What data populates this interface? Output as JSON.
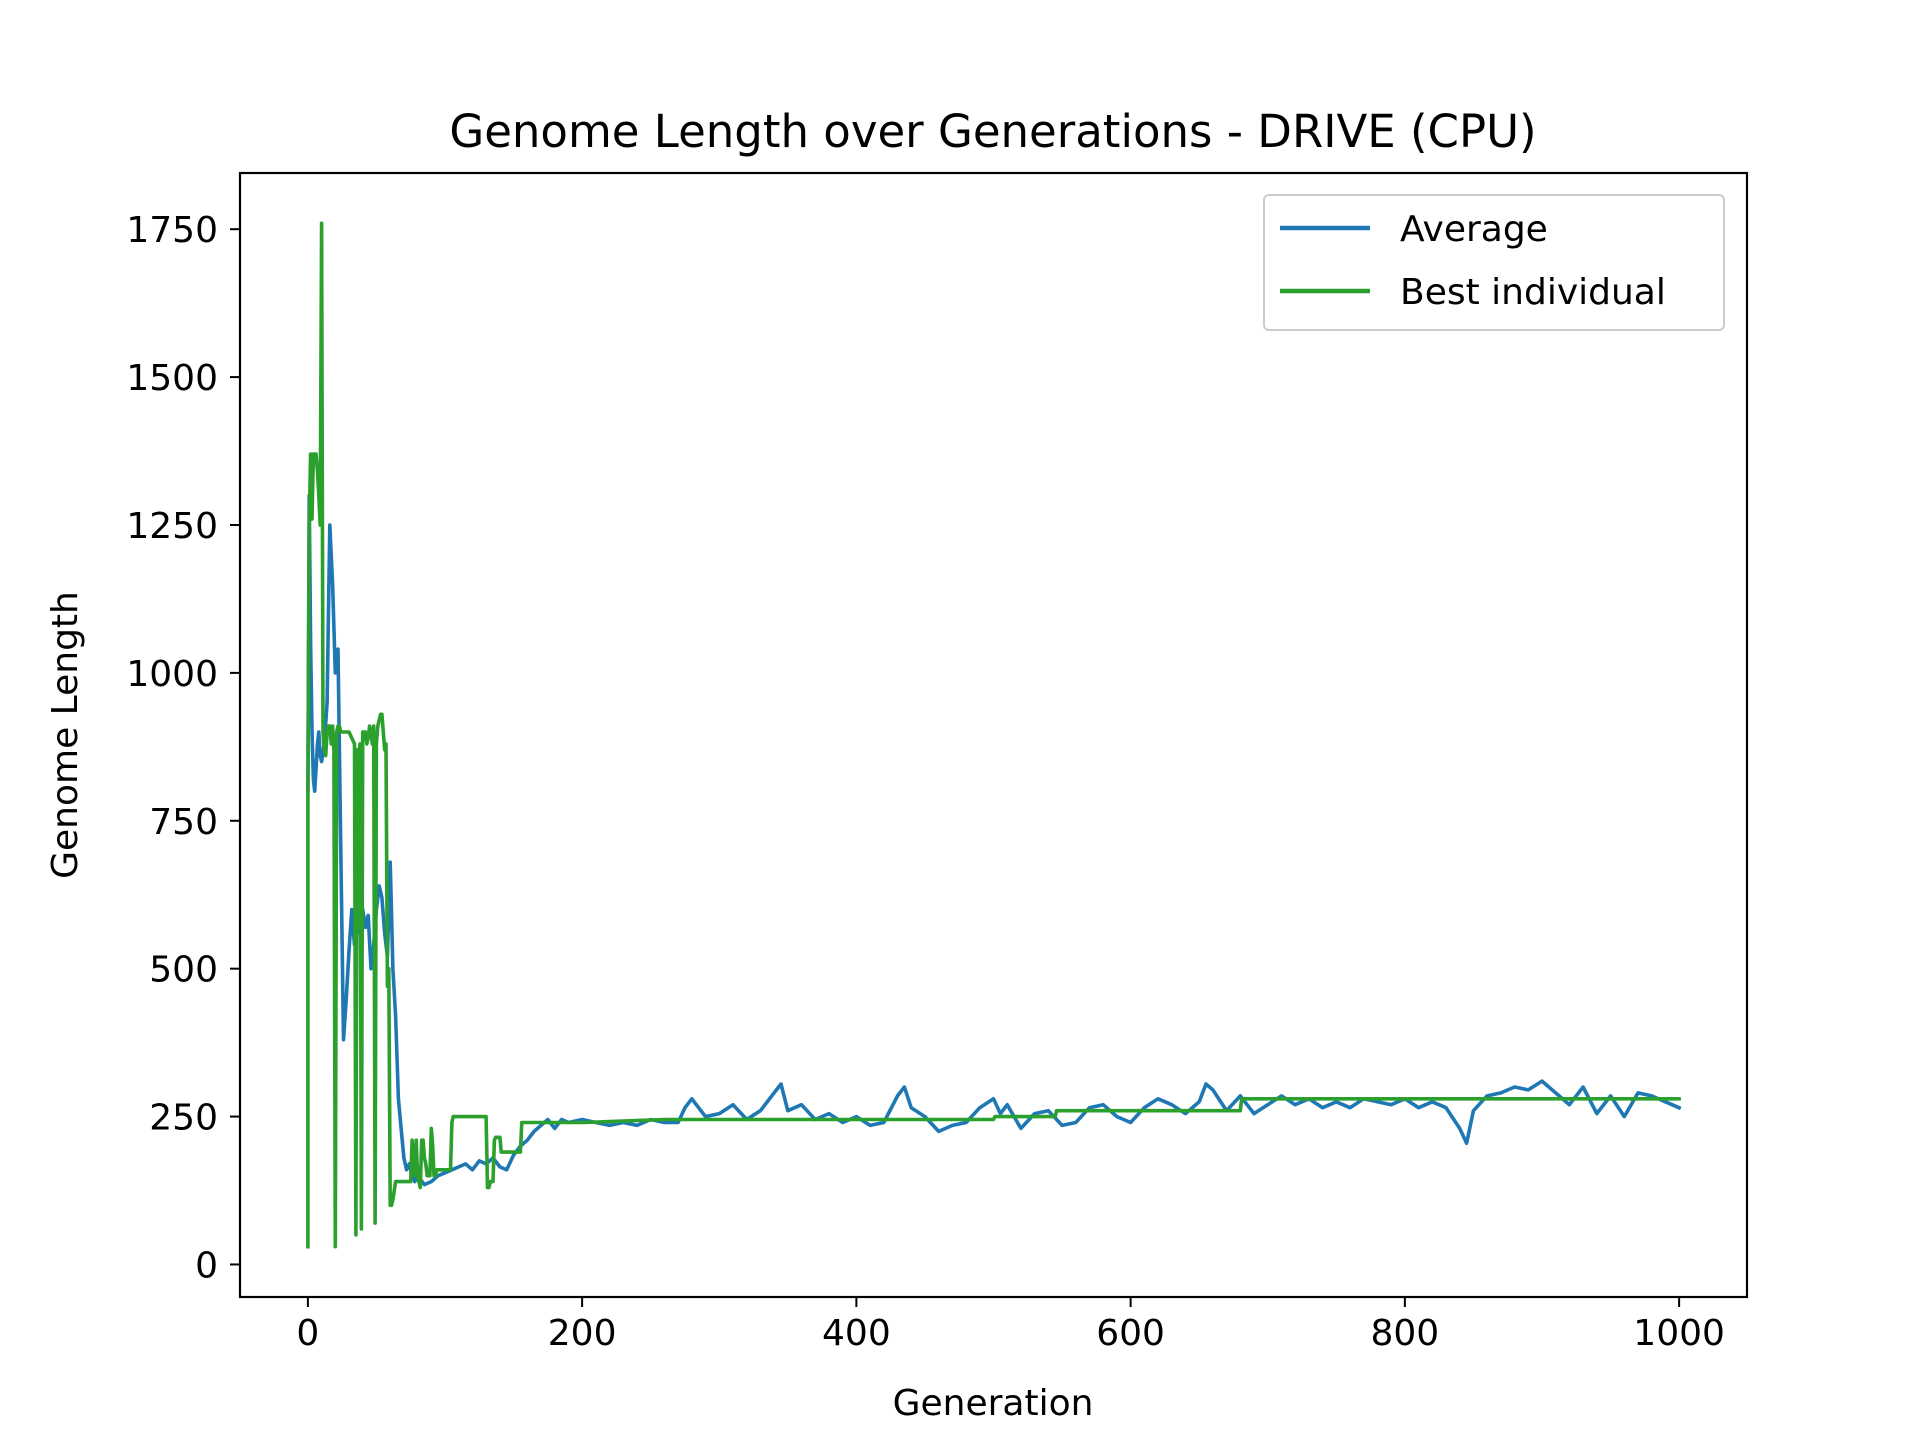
{
  "chart_data": {
    "type": "line",
    "title": "Genome Length over Generations - DRIVE (CPU)",
    "xlabel": "Generation",
    "ylabel": "Genome Length",
    "xlim": [
      -49.5,
      1049.5
    ],
    "ylim": [
      -55,
      1845
    ],
    "xticks": [
      0,
      200,
      400,
      600,
      800,
      1000
    ],
    "yticks": [
      0,
      250,
      500,
      750,
      1000,
      1250,
      1500,
      1750
    ],
    "xtick_labels": [
      "0",
      "200",
      "400",
      "600",
      "800",
      "1000"
    ],
    "ytick_labels": [
      "0",
      "250",
      "500",
      "750",
      "1000",
      "1250",
      "1500",
      "1750"
    ],
    "grid": false,
    "legend_position": "top-right",
    "series": [
      {
        "name": "Average",
        "color": "#1f77b4",
        "x": [
          0,
          1,
          2,
          3,
          4,
          5,
          6,
          7,
          8,
          9,
          10,
          12,
          14,
          16,
          18,
          20,
          22,
          24,
          26,
          28,
          30,
          32,
          34,
          36,
          38,
          40,
          42,
          44,
          46,
          48,
          50,
          52,
          54,
          56,
          58,
          60,
          62,
          64,
          66,
          68,
          70,
          72,
          74,
          76,
          78,
          80,
          85,
          90,
          95,
          100,
          105,
          110,
          115,
          120,
          125,
          130,
          135,
          140,
          145,
          150,
          155,
          160,
          165,
          170,
          175,
          180,
          185,
          190,
          200,
          210,
          220,
          230,
          240,
          250,
          260,
          270,
          275,
          280,
          290,
          300,
          310,
          320,
          330,
          340,
          345,
          350,
          360,
          370,
          380,
          390,
          400,
          410,
          420,
          430,
          435,
          440,
          450,
          460,
          470,
          480,
          490,
          500,
          505,
          510,
          520,
          530,
          540,
          550,
          560,
          570,
          580,
          590,
          600,
          610,
          620,
          630,
          640,
          650,
          655,
          660,
          670,
          680,
          690,
          700,
          710,
          720,
          730,
          740,
          750,
          760,
          770,
          780,
          790,
          800,
          810,
          820,
          830,
          840,
          845,
          850,
          860,
          870,
          880,
          890,
          900,
          910,
          920,
          930,
          940,
          950,
          960,
          970,
          980,
          990,
          1000
        ],
        "y": [
          800,
          1300,
          1050,
          900,
          820,
          800,
          840,
          880,
          900,
          860,
          850,
          880,
          950,
          1250,
          1150,
          1000,
          1040,
          700,
          380,
          450,
          530,
          600,
          540,
          560,
          620,
          600,
          570,
          590,
          500,
          540,
          600,
          640,
          620,
          560,
          520,
          680,
          500,
          420,
          280,
          230,
          180,
          160,
          170,
          150,
          140,
          150,
          135,
          140,
          150,
          155,
          160,
          165,
          170,
          160,
          175,
          170,
          180,
          165,
          160,
          185,
          200,
          210,
          225,
          235,
          245,
          230,
          245,
          240,
          245,
          240,
          235,
          240,
          235,
          245,
          240,
          240,
          265,
          280,
          250,
          255,
          270,
          245,
          260,
          290,
          305,
          260,
          270,
          245,
          255,
          240,
          250,
          235,
          240,
          285,
          300,
          265,
          250,
          225,
          235,
          240,
          265,
          280,
          255,
          270,
          230,
          255,
          260,
          235,
          240,
          265,
          270,
          250,
          240,
          265,
          280,
          270,
          255,
          275,
          305,
          295,
          260,
          285,
          255,
          270,
          285,
          270,
          280,
          265,
          275,
          265,
          280,
          275,
          270,
          280,
          265,
          275,
          265,
          230,
          205,
          260,
          285,
          290,
          300,
          295,
          310,
          290,
          270,
          300,
          255,
          285,
          250,
          290,
          285,
          275,
          265
        ]
      },
      {
        "name": "Best individual",
        "color": "#2ca02c",
        "x": [
          0,
          0,
          1,
          2,
          3,
          4,
          5,
          6,
          7,
          8,
          9,
          10,
          11,
          12,
          13,
          14,
          15,
          16,
          17,
          18,
          19,
          20,
          21,
          22,
          23,
          24,
          30,
          34,
          35,
          36,
          37,
          38,
          39,
          40,
          41,
          42,
          43,
          44,
          45,
          46,
          47,
          48,
          49,
          50,
          51,
          52,
          53,
          54,
          55,
          56,
          57,
          58,
          59,
          60,
          61,
          62,
          64,
          65,
          66,
          67,
          68,
          75,
          76,
          77,
          78,
          79,
          80,
          81,
          82,
          83,
          84,
          85,
          86,
          87,
          88,
          89,
          90,
          91,
          92,
          93,
          94,
          95,
          96,
          97,
          98,
          99,
          100,
          104,
          105,
          106,
          107,
          108,
          130,
          131,
          132,
          133,
          135,
          136,
          137,
          140,
          141,
          150,
          155,
          156,
          157,
          200,
          201,
          260,
          261,
          500,
          501,
          545,
          546,
          680,
          681,
          1000
        ],
        "y": [
          30,
          800,
          1250,
          1370,
          1260,
          1370,
          1370,
          1370,
          1340,
          1300,
          1250,
          1760,
          900,
          870,
          860,
          900,
          910,
          910,
          880,
          910,
          870,
          30,
          900,
          910,
          910,
          900,
          900,
          880,
          50,
          870,
          860,
          880,
          60,
          900,
          900,
          900,
          880,
          890,
          910,
          900,
          880,
          910,
          70,
          880,
          910,
          920,
          930,
          930,
          900,
          870,
          880,
          470,
          500,
          100,
          100,
          110,
          140,
          140,
          140,
          140,
          140,
          140,
          210,
          180,
          150,
          210,
          150,
          140,
          130,
          210,
          210,
          180,
          170,
          150,
          150,
          150,
          230,
          200,
          150,
          150,
          160,
          160,
          160,
          160,
          160,
          160,
          160,
          160,
          240,
          250,
          250,
          250,
          250,
          130,
          130,
          140,
          140,
          210,
          215,
          215,
          190,
          190,
          190,
          240,
          240,
          240,
          240,
          245,
          245,
          245,
          250,
          250,
          260,
          260,
          280,
          280
        ]
      }
    ]
  }
}
